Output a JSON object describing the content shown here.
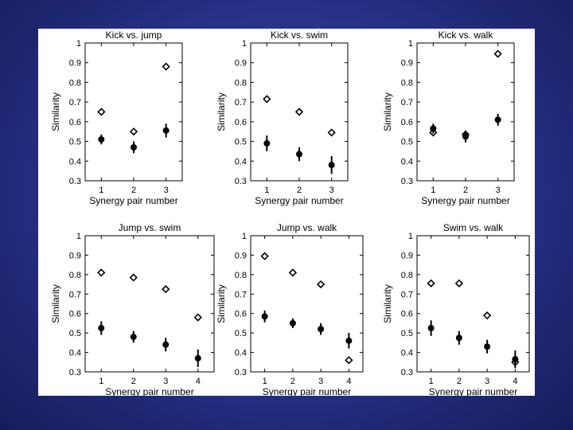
{
  "chart_data": [
    {
      "type": "scatter",
      "title": "Kick vs. jump",
      "xlabel": "Synergy pair number",
      "ylabel": "Similarity",
      "x": [
        1,
        2,
        3
      ],
      "xticks": [
        "1",
        "2",
        "3"
      ],
      "xlim": [
        0.5,
        3.5
      ],
      "ylim": [
        0.3,
        1
      ],
      "yticks": [
        "0.3",
        "0.4",
        "0.5",
        "0.6",
        "0.7",
        "0.8",
        "0.9",
        "1"
      ],
      "series": [
        {
          "marker": "diamond-open",
          "values": [
            0.65,
            0.55,
            0.88
          ]
        },
        {
          "marker": "circle-filled",
          "values": [
            0.51,
            0.47,
            0.555
          ],
          "errors": [
            0.025,
            0.03,
            0.035
          ]
        }
      ]
    },
    {
      "type": "scatter",
      "title": "Kick vs. swim",
      "xlabel": "Synergy pair number",
      "ylabel": "Similarity",
      "x": [
        1,
        2,
        3
      ],
      "xticks": [
        "1",
        "2",
        "3"
      ],
      "xlim": [
        0.5,
        3.5
      ],
      "ylim": [
        0.3,
        1
      ],
      "yticks": [
        "0.3",
        "0.4",
        "0.5",
        "0.6",
        "0.7",
        "0.8",
        "0.9",
        "1"
      ],
      "series": [
        {
          "marker": "diamond-open",
          "values": [
            0.715,
            0.65,
            0.545
          ]
        },
        {
          "marker": "circle-filled",
          "values": [
            0.49,
            0.435,
            0.38
          ],
          "errors": [
            0.04,
            0.035,
            0.045
          ]
        }
      ]
    },
    {
      "type": "scatter",
      "title": "Kick vs. walk",
      "xlabel": "Synergy pair number",
      "ylabel": "Similarity",
      "x": [
        1,
        2,
        3
      ],
      "xticks": [
        "1",
        "2",
        "3"
      ],
      "xlim": [
        0.5,
        3.5
      ],
      "ylim": [
        0.3,
        1
      ],
      "yticks": [
        "0.3",
        "0.4",
        "0.5",
        "0.6",
        "0.7",
        "0.8",
        "0.9",
        "1"
      ],
      "series": [
        {
          "marker": "diamond-open",
          "values": [
            0.545,
            0.535,
            0.945
          ]
        },
        {
          "marker": "circle-filled",
          "values": [
            0.565,
            0.525,
            0.61
          ],
          "errors": [
            0.025,
            0.03,
            0.03
          ]
        }
      ]
    },
    {
      "type": "scatter",
      "title": "Jump vs. swim",
      "xlabel": "Synergy pair number",
      "ylabel": "Similarity",
      "x": [
        1,
        2,
        3,
        4
      ],
      "xticks": [
        "1",
        "2",
        "3",
        "4"
      ],
      "xlim": [
        0.5,
        4.5
      ],
      "ylim": [
        0.3,
        1
      ],
      "yticks": [
        "0.3",
        "0.4",
        "0.5",
        "0.6",
        "0.7",
        "0.8",
        "0.9",
        "1"
      ],
      "series": [
        {
          "marker": "diamond-open",
          "values": [
            0.81,
            0.785,
            0.725,
            0.58
          ]
        },
        {
          "marker": "circle-filled",
          "values": [
            0.525,
            0.48,
            0.44,
            0.37
          ],
          "errors": [
            0.035,
            0.03,
            0.035,
            0.045
          ]
        }
      ]
    },
    {
      "type": "scatter",
      "title": "Jump vs. walk",
      "xlabel": "Synergy pair number",
      "ylabel": "Similarity",
      "x": [
        1,
        2,
        3,
        4
      ],
      "xticks": [
        "1",
        "2",
        "3",
        "4"
      ],
      "xlim": [
        0.5,
        4.5
      ],
      "ylim": [
        0.3,
        1
      ],
      "yticks": [
        "0.3",
        "0.4",
        "0.5",
        "0.6",
        "0.7",
        "0.8",
        "0.9",
        "1"
      ],
      "series": [
        {
          "marker": "diamond-open",
          "values": [
            0.895,
            0.81,
            0.75,
            0.36
          ]
        },
        {
          "marker": "circle-filled",
          "values": [
            0.585,
            0.55,
            0.52,
            0.46
          ],
          "errors": [
            0.03,
            0.025,
            0.03,
            0.04
          ]
        }
      ]
    },
    {
      "type": "scatter",
      "title": "Swim vs. walk",
      "xlabel": "Synergy pair number",
      "ylabel": "Similarity",
      "x": [
        1,
        2,
        3,
        4
      ],
      "xticks": [
        "1",
        "2",
        "3",
        "4"
      ],
      "xlim": [
        0.5,
        4.5
      ],
      "ylim": [
        0.3,
        1
      ],
      "yticks": [
        "0.3",
        "0.4",
        "0.5",
        "0.6",
        "0.7",
        "0.8",
        "0.9",
        "1"
      ],
      "series": [
        {
          "marker": "diamond-open",
          "values": [
            0.755,
            0.755,
            0.59,
            0.35
          ]
        },
        {
          "marker": "circle-filled",
          "values": [
            0.525,
            0.475,
            0.43,
            0.365
          ],
          "errors": [
            0.04,
            0.035,
            0.035,
            0.045
          ]
        }
      ]
    }
  ]
}
